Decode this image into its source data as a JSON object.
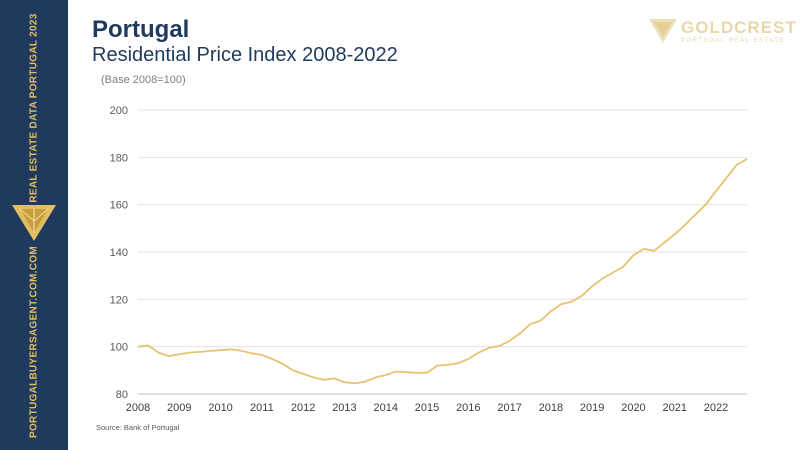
{
  "sidebar": {
    "top_text": "REAL ESTATE DATA PORTUGAL 2023",
    "bottom_text": "PORTUGALBUYERSAGENT.COM.COM"
  },
  "header": {
    "title": "Portugal",
    "subtitle": "Residential Price Index 2008-2022"
  },
  "brand": {
    "name": "GOLDCREST",
    "tagline": "PORTUGAL REAL ESTATE"
  },
  "note": "(Base 2008=100)",
  "source": "Source: Bank of Portugal",
  "colors": {
    "line": "#e6c370",
    "sidebar": "#1f3a5c",
    "accent": "#e2bd62"
  },
  "chart_data": {
    "type": "line",
    "title": "Residential Price Index 2008-2022",
    "xlabel": "",
    "ylabel": "",
    "xlim": [
      2008,
      2022.75
    ],
    "ylim": [
      80,
      200
    ],
    "y_ticks": [
      80,
      100,
      120,
      140,
      160,
      180,
      200
    ],
    "x_ticks": [
      2008,
      2009,
      2010,
      2011,
      2012,
      2013,
      2014,
      2015,
      2016,
      2017,
      2018,
      2019,
      2020,
      2021,
      2022
    ],
    "grid": "horizontal",
    "legend": "none",
    "series": [
      {
        "x": [
          2008,
          2008.25,
          2008.5,
          2008.75,
          2009,
          2009.25,
          2009.5,
          2009.75,
          2010,
          2010.25,
          2010.5,
          2010.75,
          2011,
          2011.25,
          2011.5,
          2011.75,
          2012,
          2012.25,
          2012.5,
          2012.75,
          2013,
          2013.25,
          2013.5,
          2013.75,
          2014,
          2014.25,
          2014.5,
          2014.75,
          2015,
          2015.25,
          2015.5,
          2015.75,
          2016,
          2016.25,
          2016.5,
          2016.75,
          2017,
          2017.25,
          2017.5,
          2017.75,
          2018,
          2018.25,
          2018.5,
          2018.75,
          2019,
          2019.25,
          2019.5,
          2019.75,
          2020,
          2020.25,
          2020.5,
          2020.75,
          2021,
          2021.25,
          2021.5,
          2021.75,
          2022,
          2022.25,
          2022.5,
          2022.75
        ],
        "values": [
          100,
          100.5,
          97.5,
          96,
          96.8,
          97.5,
          97.8,
          98.2,
          98.5,
          98.9,
          98.3,
          97.2,
          96.5,
          94.8,
          92.8,
          90,
          88.5,
          87,
          86,
          86.6,
          85,
          84.5,
          85.2,
          87,
          88,
          89.5,
          89.2,
          88.9,
          89,
          92,
          92.3,
          93,
          94.8,
          97.5,
          99.5,
          100.3,
          102.5,
          105.5,
          109.5,
          111,
          115,
          118,
          119,
          121.5,
          125.5,
          128.8,
          131.3,
          133.7,
          138.7,
          141.3,
          140.5,
          144,
          147.5,
          151.5,
          155.8,
          160,
          165.8,
          171.3,
          176.8,
          179.3
        ]
      }
    ]
  }
}
